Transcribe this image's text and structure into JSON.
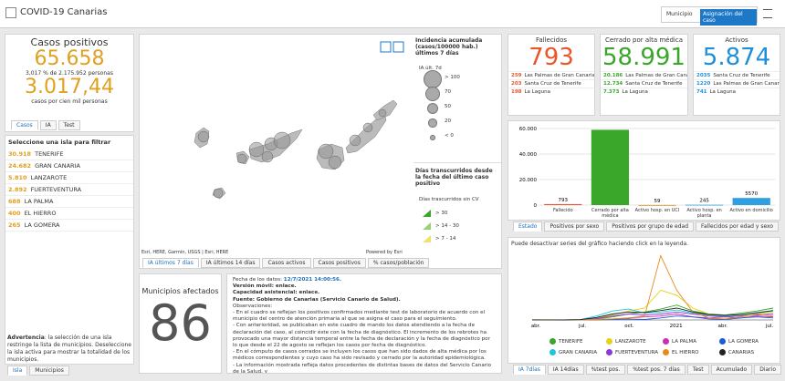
{
  "header": {
    "title": "COVID-19 Canarias",
    "buttons": [
      "Municipio",
      "Asignación del caso"
    ]
  },
  "positivos": {
    "title": "Casos positivos",
    "total": "65.658",
    "percent": "3,017 % de 2.175.952 personas",
    "rate": "3.017,44",
    "rate_label": "casos por cien mil personas",
    "tabs": [
      "Casos",
      "IA",
      "Test"
    ]
  },
  "islands": {
    "title": "Seleccione una isla para filtrar",
    "rows": [
      {
        "value": "30.918",
        "name": "TENERIFE"
      },
      {
        "value": "24.682",
        "name": "GRAN CANARIA"
      },
      {
        "value": "5.810",
        "name": "LANZAROTE"
      },
      {
        "value": "2.892",
        "name": "FUERTEVENTURA"
      },
      {
        "value": "688",
        "name": "LA PALMA"
      },
      {
        "value": "400",
        "name": "EL HIERRO"
      },
      {
        "value": "265",
        "name": "LA GOMERA"
      }
    ],
    "warning_label": "Advertencia",
    "warning": ": la selección de una isla restringe la lista de municipios. Deseleccione la isla activa para mostrar la totalidad de los municipios.",
    "tabs": [
      "Isla",
      "Municipios"
    ]
  },
  "map": {
    "legend1": {
      "title": "Incidencia acumulada (casos/100000 hab.) últimos 7 días",
      "subtitle": "IA últ. 7d",
      "items": [
        "> 100",
        "70",
        "50",
        "20",
        "< 0"
      ]
    },
    "legend2": {
      "title": "Días transcurridos desde la fecha del último caso positivo",
      "subtitle": "Días trascurridos sin CV",
      "items": [
        "> 30",
        "> 14 - 30",
        "> 7 - 14"
      ]
    },
    "attribution": "Esri, HERE, Garmin, USGS | Esri, HERE",
    "powered": "Powered by Esri",
    "tabs": [
      "IA últimos 7 días",
      "IA últimos 14 días",
      "Casos activos",
      "Casos positivos",
      "% casos/población"
    ]
  },
  "municipios": {
    "title": "Municipios afectados",
    "value": "86"
  },
  "info": {
    "date_label": "Fecha de los datos: ",
    "date": "12/7/2021 14:00:56.",
    "lines": [
      "Versión móvil: enlace.",
      "Capacidad asistencial: enlace.",
      "Fuente: Gobierno de Canarias (Servicio Canario de Salud).",
      "Observaciones:",
      "- En el cuadro se reflejan los positivos confirmados mediante test de laboratorio de acuerdo con el municipio del centro de atención primaria al que se asigna el caso para el seguimiento.",
      "- Con anterioridad, se publicaban en este cuadro de mando los datos atendiendo a la fecha de declaración del caso, al coincidir éste con la fecha de diagnóstico. El incremento de los rebrotes ha provocado una mayor distancia temporal entre la fecha de declaración y la fecha de diagnóstico por lo que desde el 22 de agosto se reflejan los casos por fecha de diagnóstico.",
      "- En el cómputo de casos cerrados se incluyen los casos que han sido dados de alta médica por los médicos correspondientes y cuyo caso ha sido revisado y cerrado por la autoridad epidemiológica.",
      "- La información mostrada refleja datos procedentes de distintas bases de datos del Servicio Canario de la Salud, y"
    ]
  },
  "kpis": [
    {
      "title": "Fallecidos",
      "value": "793",
      "color": "#e8562a",
      "rows": [
        {
          "value": "259",
          "name": "Las Palmas de Gran Canaria"
        },
        {
          "value": "203",
          "name": "Santa Cruz de Tenerife"
        },
        {
          "value": "198",
          "name": "La Laguna"
        }
      ]
    },
    {
      "title": "Cerrado por alta médica",
      "value": "58.991",
      "color": "#3aa62a",
      "rows": [
        {
          "value": "20.186",
          "name": "Las Palmas de Gran Canaria"
        },
        {
          "value": "12.734",
          "name": "Santa Cruz de Tenerife"
        },
        {
          "value": "7.373",
          "name": "La Laguna"
        }
      ]
    },
    {
      "title": "Activos",
      "value": "5.874",
      "color": "#1e90d8",
      "rows": [
        {
          "value": "2035",
          "name": "Santa Cruz de Tenerife"
        },
        {
          "value": "1220",
          "name": "Las Palmas de Gran Canaria"
        },
        {
          "value": "741",
          "name": "La Laguna"
        }
      ]
    }
  ],
  "bar_chart": {
    "type": "bar",
    "categories": [
      "Fallecido",
      "Cerrado por alta médica",
      "Activo hosp. en UCI",
      "Activo hosp. en planta",
      "Activo en domicilio"
    ],
    "values": [
      793,
      58991,
      59,
      245,
      5570
    ],
    "value_labels": [
      "793",
      null,
      "59",
      "245",
      "5570"
    ],
    "colors": [
      "#e8562a",
      "#3aa62a",
      "#d98a1a",
      "#2e9fe0",
      "#2e9fe0"
    ],
    "ylim": [
      0,
      60000
    ],
    "yticks": [
      0,
      {
        "value": 20000,
        "label": "20.000"
      },
      {
        "value": 40000,
        "label": "40.000"
      },
      {
        "value": 60000,
        "label": "60.000"
      }
    ],
    "tabs": [
      "Estado",
      "Positivos por sexo",
      "Positivos por grupo de edad",
      "Fallecidos por edad y sexo"
    ]
  },
  "line_chart": {
    "type": "line",
    "note": "Puede desactivar series del gráfico haciendo click en la leyenda.",
    "xlabels": [
      "abr.",
      "jul.",
      "oct.",
      "2021",
      "abr.",
      "jul."
    ],
    "ylim": [
      0,
      700
    ],
    "series": [
      {
        "name": "TENERIFE",
        "color": "#3aa62a",
        "values": [
          2,
          1,
          0,
          3,
          10,
          30,
          60,
          80,
          110,
          150,
          90,
          60,
          50,
          70,
          90,
          120
        ]
      },
      {
        "name": "LANZAROTE",
        "color": "#e6d21a",
        "values": [
          1,
          1,
          0,
          2,
          20,
          50,
          90,
          120,
          300,
          250,
          120,
          60,
          30,
          40,
          60,
          80
        ]
      },
      {
        "name": "LA PALMA",
        "color": "#d02bb8",
        "values": [
          0,
          0,
          0,
          1,
          5,
          10,
          20,
          30,
          40,
          60,
          30,
          20,
          30,
          20,
          40,
          30
        ]
      },
      {
        "name": "LA GOMERA",
        "color": "#1e5bd8",
        "values": [
          0,
          0,
          0,
          0,
          2,
          5,
          10,
          5,
          20,
          40,
          30,
          10,
          5,
          20,
          30,
          20
        ]
      },
      {
        "name": "GRAN CANARIA",
        "color": "#1ac8d8",
        "values": [
          1,
          1,
          0,
          4,
          40,
          90,
          110,
          70,
          80,
          100,
          70,
          50,
          40,
          50,
          70,
          90
        ]
      },
      {
        "name": "FUERTEVENTURA",
        "color": "#8a3ad8",
        "values": [
          1,
          0,
          0,
          2,
          15,
          40,
          60,
          50,
          60,
          80,
          60,
          40,
          30,
          40,
          50,
          60
        ]
      },
      {
        "name": "EL HIERRO",
        "color": "#e88a1a",
        "values": [
          0,
          0,
          0,
          0,
          5,
          10,
          20,
          40,
          650,
          300,
          80,
          20,
          10,
          30,
          60,
          40
        ]
      },
      {
        "name": "CANARIAS",
        "color": "#222222",
        "values": [
          1,
          1,
          0,
          3,
          25,
          60,
          80,
          75,
          95,
          120,
          80,
          55,
          45,
          55,
          75,
          95
        ]
      }
    ],
    "tabs": [
      "IA 7días",
      "IA 14días",
      "%test pos.",
      "%test pos. 7 días",
      "Test",
      "Acumulado",
      "Diario"
    ]
  }
}
